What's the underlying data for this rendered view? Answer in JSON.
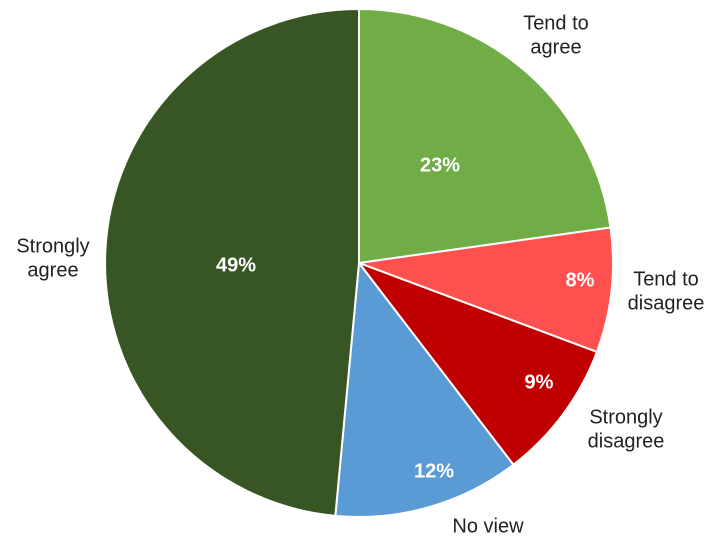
{
  "chart_data": {
    "type": "pie",
    "title": "",
    "start_angle_deg": 0,
    "direction": "clockwise",
    "legend": "none",
    "slices": [
      {
        "label_lines": [
          "Tend to",
          "agree"
        ],
        "value": 23,
        "value_label": "23%",
        "color": "#70AD47"
      },
      {
        "label_lines": [
          "Tend to",
          "disagree"
        ],
        "value": 8,
        "value_label": "8%",
        "color": "#FF5050"
      },
      {
        "label_lines": [
          "Strongly",
          "disagree"
        ],
        "value": 9,
        "value_label": "9%",
        "color": "#C00000"
      },
      {
        "label_lines": [
          "No view"
        ],
        "value": 12,
        "value_label": "12%",
        "color": "#5B9BD5"
      },
      {
        "label_lines": [
          "Strongly",
          "agree"
        ],
        "value": 49,
        "value_label": "49%",
        "color": "#375623"
      }
    ]
  }
}
